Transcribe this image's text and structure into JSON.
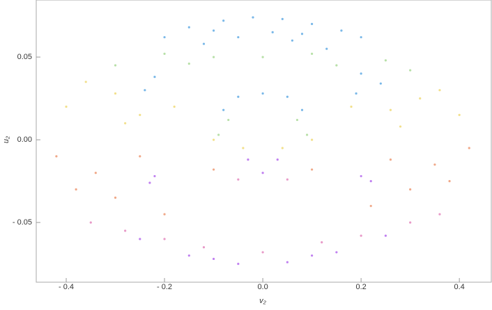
{
  "chart_data": {
    "type": "scatter",
    "xlabel": "v₂",
    "ylabel": "u₂",
    "xlim": [
      -0.461,
      0.465
    ],
    "ylim": [
      -0.0861,
      0.0845
    ],
    "xticks": [
      {
        "value": -0.4,
        "label": "- 0.4"
      },
      {
        "value": -0.2,
        "label": "- 0.2"
      },
      {
        "value": 0.0,
        "label": "0.0"
      },
      {
        "value": 0.2,
        "label": "0.2"
      },
      {
        "value": 0.4,
        "label": "0.4"
      }
    ],
    "yticks": [
      {
        "value": -0.05,
        "label": "- 0.05"
      },
      {
        "value": 0.0,
        "label": "0.00"
      },
      {
        "value": 0.05,
        "label": "0.05"
      }
    ],
    "series": [
      {
        "color": "#7ab8e8",
        "x": [
          -0.15,
          -0.08,
          -0.02,
          0.04,
          0.1,
          0.16,
          0.2,
          -0.2,
          -0.12,
          0.06,
          0.13,
          -0.05,
          0.02,
          0.08,
          -0.1,
          0,
          0.05,
          -0.05,
          0.08,
          -0.08,
          0.2,
          0.19,
          0.24,
          -0.22,
          -0.24
        ],
        "y": [
          0.068,
          0.072,
          0.074,
          0.073,
          0.07,
          0.066,
          0.062,
          0.062,
          0.058,
          0.06,
          0.055,
          0.062,
          0.065,
          0.064,
          0.066,
          0.028,
          0.026,
          0.026,
          0.018,
          0.018,
          0.04,
          0.028,
          0.034,
          0.038,
          0.03
        ]
      },
      {
        "color": "#b8e0a8",
        "x": [
          -0.3,
          -0.2,
          0.25,
          0.3,
          -0.1,
          0.1,
          0,
          0.15,
          -0.15,
          -0.07,
          0.07,
          0.09,
          -0.09
        ],
        "y": [
          0.045,
          0.052,
          0.048,
          0.042,
          0.05,
          0.052,
          0.05,
          0.045,
          0.046,
          0.012,
          0.012,
          0.003,
          0.003
        ]
      },
      {
        "color": "#f2e08c",
        "x": [
          -0.4,
          -0.36,
          -0.3,
          0.36,
          0.4,
          0.32,
          -0.28,
          0.28,
          -0.25,
          0.26,
          -0.18,
          0.18,
          -0.1,
          0.1,
          0.04,
          -0.04
        ],
        "y": [
          0.02,
          0.035,
          0.028,
          0.03,
          0.015,
          0.025,
          0.01,
          0.008,
          0.015,
          0.018,
          0.02,
          0.02,
          0.0,
          0.0,
          -0.005,
          -0.005
        ]
      },
      {
        "color": "#f0a888",
        "x": [
          -0.42,
          -0.38,
          0.42,
          0.38,
          -0.3,
          0.3,
          -0.2,
          0.22,
          -0.34,
          0.35,
          -0.1,
          0.1,
          -0.25,
          0.26
        ],
        "y": [
          -0.01,
          -0.03,
          -0.005,
          -0.025,
          -0.035,
          -0.03,
          -0.045,
          -0.04,
          -0.02,
          -0.015,
          -0.018,
          -0.018,
          -0.01,
          -0.012
        ]
      },
      {
        "color": "#e89ac8",
        "x": [
          -0.35,
          -0.28,
          0.3,
          0.36,
          -0.2,
          0.2,
          -0.12,
          0.12,
          0,
          -0.05,
          0.05
        ],
        "y": [
          -0.05,
          -0.055,
          -0.05,
          -0.045,
          -0.06,
          -0.058,
          -0.065,
          -0.062,
          -0.068,
          -0.024,
          -0.024
        ]
      },
      {
        "color": "#c080f0",
        "x": [
          -0.25,
          -0.15,
          -0.05,
          0.05,
          0.15,
          0.25,
          -0.1,
          0.1,
          0,
          -0.03,
          0.03,
          -0.22,
          -0.23,
          0.22,
          0.2
        ],
        "y": [
          -0.06,
          -0.07,
          -0.075,
          -0.074,
          -0.068,
          -0.058,
          -0.072,
          -0.07,
          -0.02,
          -0.012,
          -0.012,
          -0.022,
          -0.026,
          -0.025,
          -0.022
        ]
      }
    ]
  }
}
